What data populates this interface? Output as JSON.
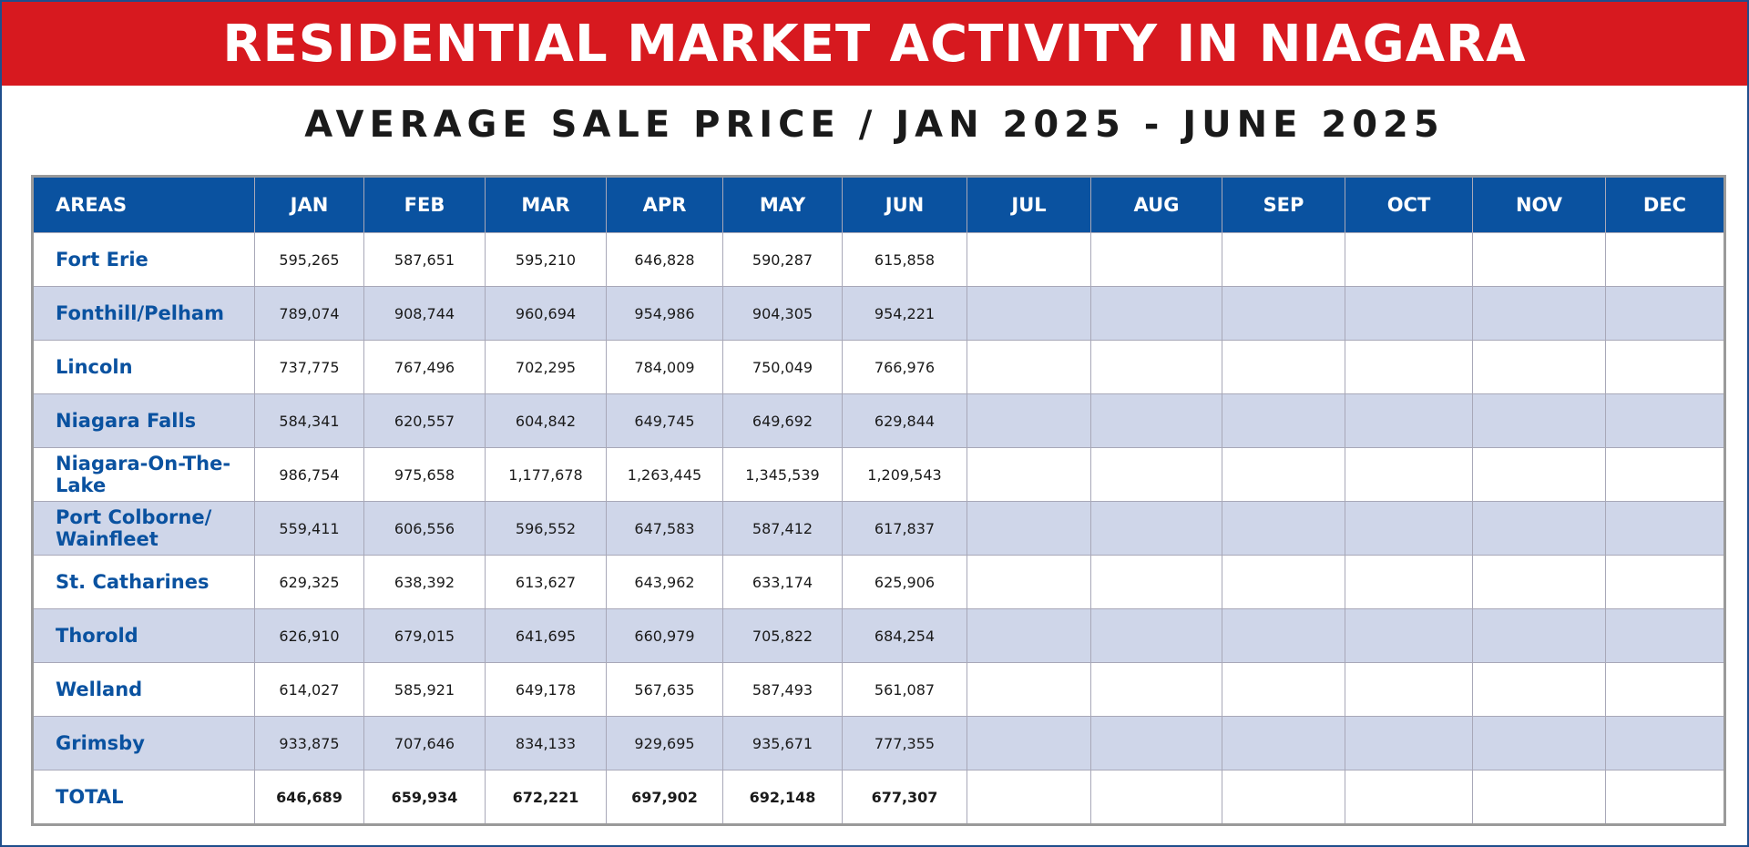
{
  "header": {
    "title": "RESIDENTIAL MARKET ACTIVITY IN NIAGARA",
    "subtitle": "AVERAGE SALE PRICE / JAN 2025 - JUNE 2025"
  },
  "colors": {
    "banner": "#d7191f",
    "header_row": "#0a52a0",
    "alt_row": "#cfd6e9",
    "area_text": "#0a52a0"
  },
  "table": {
    "columns": [
      "AREAS",
      "JAN",
      "FEB",
      "MAR",
      "APR",
      "MAY",
      "JUN",
      "JUL",
      "AUG",
      "SEP",
      "OCT",
      "NOV",
      "DEC"
    ],
    "rows": [
      {
        "area": "Fort Erie",
        "values": [
          "595,265",
          "587,651",
          "595,210",
          "646,828",
          "590,287",
          "615,858",
          "",
          "",
          "",
          "",
          "",
          ""
        ]
      },
      {
        "area": "Fonthill/Pelham",
        "values": [
          "789,074",
          "908,744",
          "960,694",
          "954,986",
          "904,305",
          "954,221",
          "",
          "",
          "",
          "",
          "",
          ""
        ]
      },
      {
        "area": "Lincoln",
        "values": [
          "737,775",
          "767,496",
          "702,295",
          "784,009",
          "750,049",
          "766,976",
          "",
          "",
          "",
          "",
          "",
          ""
        ]
      },
      {
        "area": "Niagara Falls",
        "values": [
          "584,341",
          "620,557",
          "604,842",
          "649,745",
          "649,692",
          "629,844",
          "",
          "",
          "",
          "",
          "",
          ""
        ]
      },
      {
        "area": "Niagara-On-The-Lake",
        "values": [
          "986,754",
          "975,658",
          "1,177,678",
          "1,263,445",
          "1,345,539",
          "1,209,543",
          "",
          "",
          "",
          "",
          "",
          ""
        ]
      },
      {
        "area": "Port Colborne/ Wainfleet",
        "values": [
          "559,411",
          "606,556",
          "596,552",
          "647,583",
          "587,412",
          "617,837",
          "",
          "",
          "",
          "",
          "",
          ""
        ]
      },
      {
        "area": "St. Catharines",
        "values": [
          "629,325",
          "638,392",
          "613,627",
          "643,962",
          "633,174",
          "625,906",
          "",
          "",
          "",
          "",
          "",
          ""
        ]
      },
      {
        "area": "Thorold",
        "values": [
          "626,910",
          "679,015",
          "641,695",
          "660,979",
          "705,822",
          "684,254",
          "",
          "",
          "",
          "",
          "",
          ""
        ]
      },
      {
        "area": "Welland",
        "values": [
          "614,027",
          "585,921",
          "649,178",
          "567,635",
          "587,493",
          "561,087",
          "",
          "",
          "",
          "",
          "",
          ""
        ]
      },
      {
        "area": "Grimsby",
        "values": [
          "933,875",
          "707,646",
          "834,133",
          "929,695",
          "935,671",
          "777,355",
          "",
          "",
          "",
          "",
          "",
          ""
        ]
      }
    ],
    "total": {
      "area": "TOTAL",
      "values": [
        "646,689",
        "659,934",
        "672,221",
        "697,902",
        "692,148",
        "677,307",
        "",
        "",
        "",
        "",
        "",
        ""
      ]
    }
  }
}
